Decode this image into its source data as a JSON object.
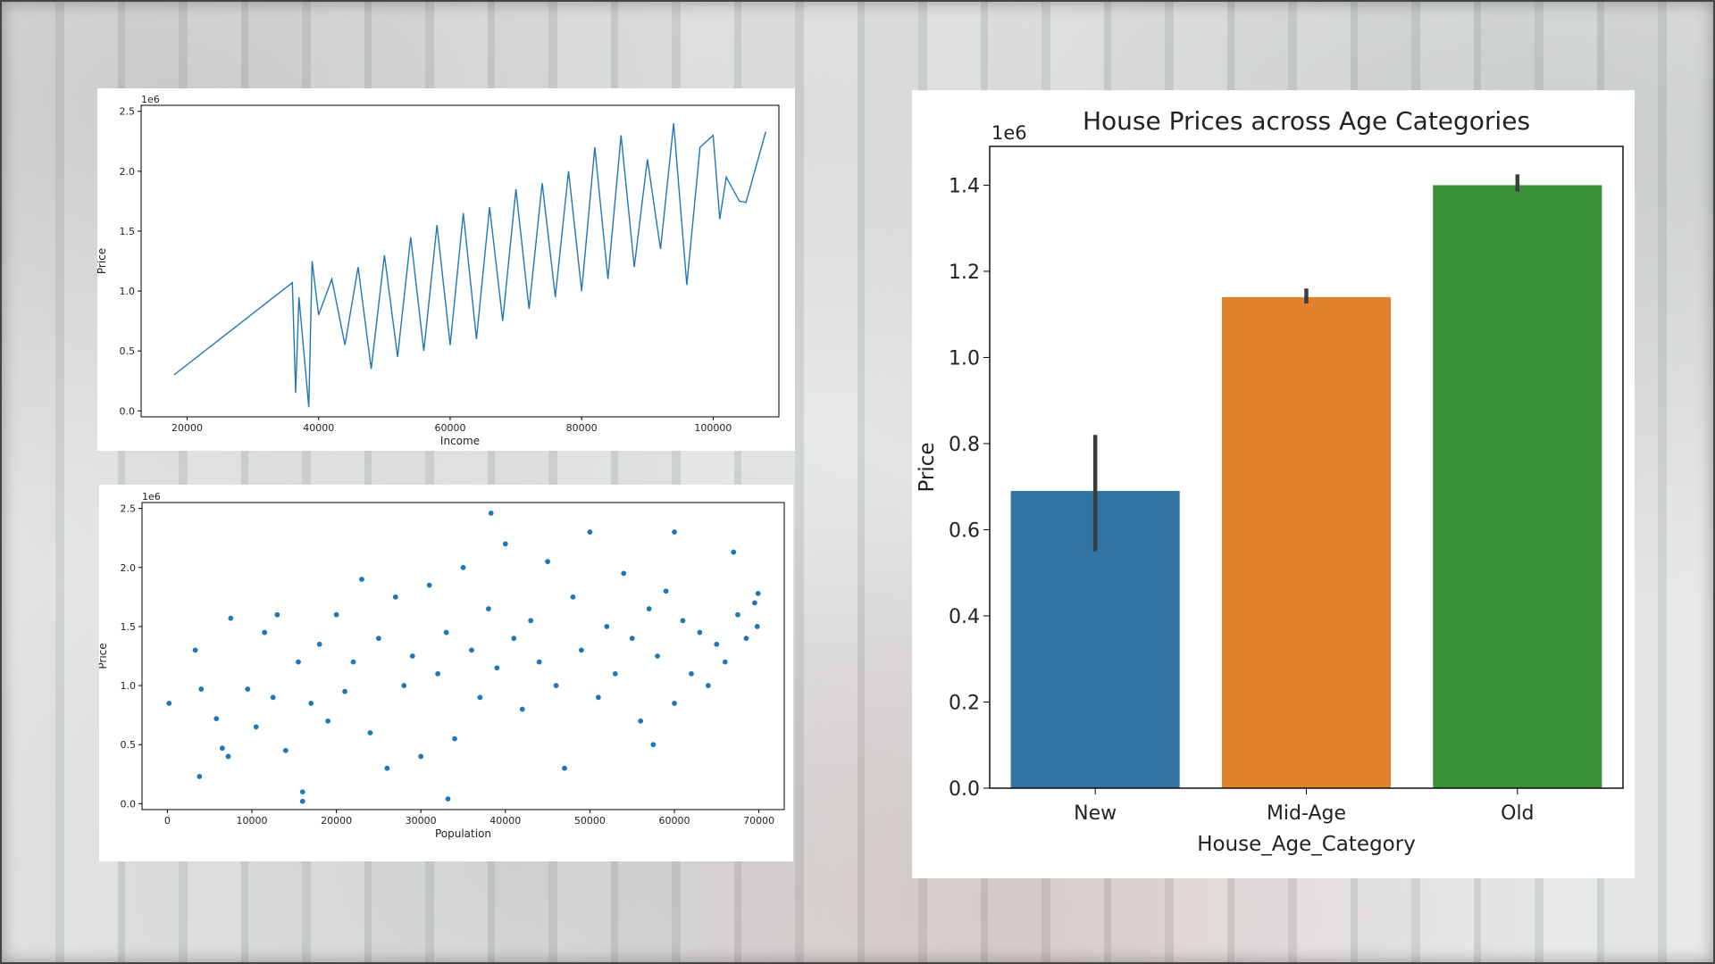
{
  "chart_data": [
    {
      "type": "line",
      "xlabel": "Income",
      "ylabel": "Price",
      "y_multiplier": "1e6",
      "xlim": [
        13000,
        110000
      ],
      "ylim": [
        -0.05,
        2.55
      ],
      "x_ticks": [
        20000,
        40000,
        60000,
        80000,
        100000
      ],
      "x_tick_labels": [
        "20000",
        "40000",
        "60000",
        "80000",
        "100000"
      ],
      "y_ticks": [
        0.0,
        0.5,
        1.0,
        1.5,
        2.0,
        2.5
      ],
      "y_tick_labels": [
        "0.0",
        "0.5",
        "1.0",
        "1.5",
        "2.0",
        "2.5"
      ],
      "color": "#1f77b4",
      "series": [
        {
          "x": [
            18000,
            36000,
            36500,
            37000,
            38500,
            39000,
            40000,
            42000,
            44000,
            46000,
            48000,
            50000,
            52000,
            54000,
            56000,
            58000,
            60000,
            62000,
            64000,
            66000,
            68000,
            70000,
            72000,
            74000,
            76000,
            78000,
            80000,
            82000,
            84000,
            86000,
            88000,
            90000,
            92000,
            94000,
            96000,
            98000,
            100000,
            101000,
            102000,
            104000,
            105000,
            108000
          ],
          "y": [
            0.3,
            1.07,
            0.15,
            0.95,
            0.03,
            1.25,
            0.8,
            1.1,
            0.55,
            1.2,
            0.35,
            1.3,
            0.45,
            1.45,
            0.5,
            1.55,
            0.55,
            1.65,
            0.6,
            1.7,
            0.75,
            1.85,
            0.85,
            1.9,
            0.95,
            2.0,
            1.0,
            2.2,
            1.1,
            2.3,
            1.2,
            2.1,
            1.35,
            2.4,
            1.05,
            2.2,
            2.3,
            1.6,
            1.95,
            1.75,
            1.74,
            2.33
          ]
        }
      ]
    },
    {
      "type": "scatter",
      "xlabel": "Population",
      "ylabel": "Price",
      "y_multiplier": "1e6",
      "xlim": [
        -3000,
        73000
      ],
      "ylim": [
        -0.05,
        2.55
      ],
      "x_ticks": [
        0,
        10000,
        20000,
        30000,
        40000,
        50000,
        60000,
        70000
      ],
      "x_tick_labels": [
        "0",
        "10000",
        "20000",
        "30000",
        "40000",
        "50000",
        "60000",
        "70000"
      ],
      "y_ticks": [
        0.0,
        0.5,
        1.0,
        1.5,
        2.0,
        2.5
      ],
      "y_tick_labels": [
        "0.0",
        "0.5",
        "1.0",
        "1.5",
        "2.0",
        "2.5"
      ],
      "color": "#1f77b4",
      "points": {
        "x": [
          200,
          3300,
          3800,
          4000,
          5800,
          6500,
          7200,
          7500,
          9500,
          10500,
          11500,
          12500,
          13000,
          14000,
          15500,
          16000,
          17000,
          18000,
          19000,
          20000,
          21000,
          22000,
          23000,
          24000,
          25000,
          26000,
          27000,
          28000,
          29000,
          30000,
          31000,
          32000,
          33000,
          34000,
          35000,
          36000,
          37000,
          38000,
          39000,
          40000,
          41000,
          42000,
          43000,
          44000,
          45000,
          46000,
          47000,
          48000,
          49000,
          50000,
          51000,
          52000,
          53000,
          54000,
          55000,
          56000,
          57000,
          58000,
          59000,
          60000,
          61000,
          62000,
          63000,
          64000,
          65000,
          66000,
          67000,
          67500,
          68500,
          69500,
          69800,
          69900,
          38300,
          33200,
          16000,
          60000,
          57500
        ],
        "y": [
          0.85,
          1.3,
          0.23,
          0.97,
          0.72,
          0.47,
          0.4,
          1.57,
          0.97,
          0.65,
          1.45,
          0.9,
          1.6,
          0.45,
          1.2,
          0.02,
          0.85,
          1.35,
          0.7,
          1.6,
          0.95,
          1.2,
          1.9,
          0.6,
          1.4,
          0.3,
          1.75,
          1.0,
          1.25,
          0.4,
          1.85,
          1.1,
          1.45,
          0.55,
          2.0,
          1.3,
          0.9,
          1.65,
          1.15,
          2.2,
          1.4,
          0.8,
          1.55,
          1.2,
          2.05,
          1.0,
          0.3,
          1.75,
          1.3,
          2.3,
          0.9,
          1.5,
          1.1,
          1.95,
          1.4,
          0.7,
          1.65,
          1.25,
          1.8,
          0.85,
          1.55,
          1.1,
          1.45,
          1.0,
          1.35,
          1.2,
          2.13,
          1.6,
          1.4,
          1.7,
          1.5,
          1.78,
          2.46,
          0.04,
          0.1,
          2.3,
          0.5
        ]
      }
    },
    {
      "type": "bar",
      "title": "House Prices across Age Categories",
      "xlabel": "House_Age_Category",
      "ylabel": "Price",
      "y_multiplier": "1e6",
      "ylim": [
        0.0,
        1.49
      ],
      "y_ticks": [
        0.0,
        0.2,
        0.4,
        0.6,
        0.8,
        1.0,
        1.2,
        1.4
      ],
      "y_tick_labels": [
        "0.0",
        "0.2",
        "0.4",
        "0.6",
        "0.8",
        "1.0",
        "1.2",
        "1.4"
      ],
      "categories": [
        "New",
        "Mid-Age",
        "Old"
      ],
      "values": [
        0.69,
        1.14,
        1.4
      ],
      "error_low": [
        0.55,
        1.125,
        1.385
      ],
      "error_high": [
        0.82,
        1.16,
        1.425
      ],
      "colors": [
        "#3274a1",
        "#e1812c",
        "#3a923a"
      ]
    }
  ]
}
